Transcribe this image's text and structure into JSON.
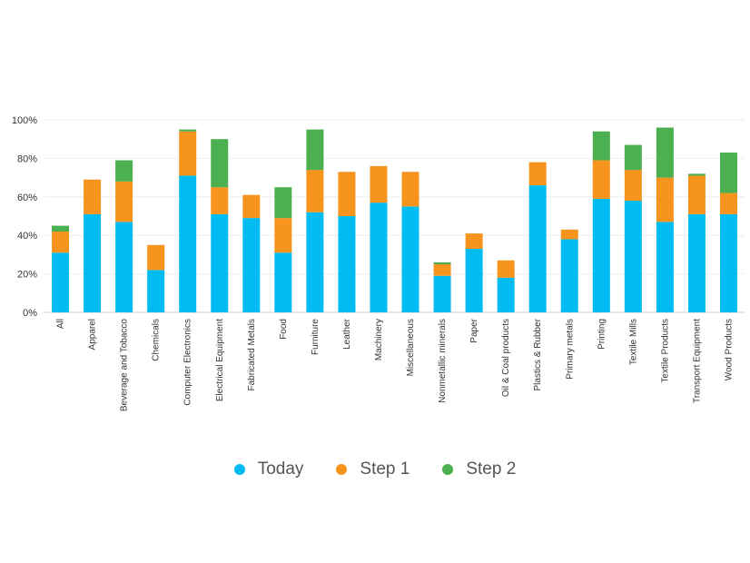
{
  "chart_data": {
    "type": "bar",
    "stacked": true,
    "title": "",
    "xlabel": "",
    "ylabel": "",
    "ylim": [
      0,
      100
    ],
    "y_ticks": [
      0,
      20,
      40,
      60,
      80,
      100
    ],
    "y_tick_labels": [
      "0%",
      "20%",
      "40%",
      "60%",
      "80%",
      "100%"
    ],
    "grid": true,
    "legend_position": "bottom-center",
    "categories": [
      "All",
      "Apparel",
      "Beverage and Tobacco",
      "Chemicals",
      "Computer Electronics",
      "Electrical Equipment",
      "Fabricated Metals",
      "Food",
      "Furniture",
      "Leather",
      "Machinery",
      "Miscellaneous",
      "Nonmetallic minerals",
      "Paper",
      "Oil & Coal products",
      "Plastics & Rubber",
      "Primary metals",
      "Printing",
      "Textile Mills",
      "Textile Products",
      "Transport Equipment",
      "Wood Products"
    ],
    "series": [
      {
        "name": "Today",
        "color": "#00BCF2",
        "values": [
          31,
          51,
          47,
          22,
          71,
          51,
          49,
          31,
          52,
          50,
          57,
          55,
          19,
          33,
          18,
          66,
          38,
          59,
          58,
          47,
          51,
          51
        ]
      },
      {
        "name": "Step 1",
        "color": "#F7941D",
        "values": [
          11,
          18,
          21,
          13,
          23,
          14,
          12,
          18,
          22,
          23,
          19,
          18,
          6,
          8,
          9,
          12,
          5,
          20,
          16,
          23,
          20,
          11
        ]
      },
      {
        "name": "Step 2",
        "color": "#4CAF50",
        "values": [
          3,
          0,
          11,
          0,
          1,
          25,
          0,
          16,
          21,
          0,
          0,
          0,
          1,
          0,
          0,
          0,
          0,
          15,
          13,
          26,
          1,
          21
        ]
      }
    ]
  }
}
